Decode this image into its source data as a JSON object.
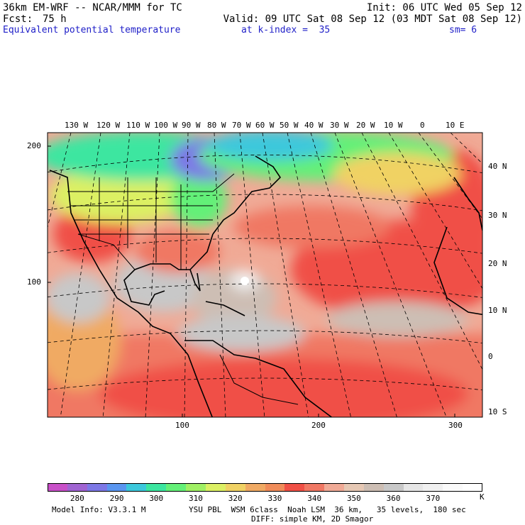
{
  "header": {
    "model_line": "36km EM-WRF -- NCAR/MMM for TC",
    "init": "Init: 06 UTC Wed 05 Sep 12",
    "fcst_label": "Fcst:",
    "fcst_value": "75 h",
    "valid": "Valid: 09 UTC Sat 08 Sep 12 (03 MDT Sat 08 Sep 12)",
    "field_name": "Equivalent potential temperature",
    "level": "at k-index =  35",
    "smoothing": "sm= 6"
  },
  "map": {
    "lon_labels": [
      "130 W",
      "120 W",
      "110 W",
      "100 W",
      "90 W",
      "80 W",
      "70 W",
      "60 W",
      "50 W",
      "40 W",
      "30 W",
      "20 W",
      "10 W",
      "0",
      "10 E"
    ],
    "lat_labels": [
      "40 N",
      "30 N",
      "20 N",
      "10 N",
      "0",
      "10 S"
    ],
    "grid_y_labels": [
      "200",
      "100"
    ],
    "grid_x_labels": [
      "100",
      "200",
      "300"
    ],
    "colors": {
      "background": "#f08c78",
      "land_outline": "#000000"
    }
  },
  "colorbar": {
    "colors": [
      "#c850c8",
      "#a064d2",
      "#7d78e6",
      "#5a96f0",
      "#3cc8dc",
      "#3ce6a0",
      "#64f078",
      "#a0f064",
      "#dcf064",
      "#f0d264",
      "#f0aa64",
      "#f08c5a",
      "#f05046",
      "#f07864",
      "#f0aa96",
      "#e6c8b4",
      "#cdbeb4",
      "#c8c8c8",
      "#e6e6e6",
      "#f0f0f0",
      "#fafafa",
      "#ffffff"
    ],
    "labels": [
      "280",
      "290",
      "300",
      "310",
      "320",
      "330",
      "340",
      "350",
      "360",
      "370"
    ],
    "unit": "K"
  },
  "footer": {
    "model_info": "Model Info: V3.3.1 M",
    "physics": "YSU PBL  WSM 6class  Noah LSM  36 km,   35 levels,  180 sec",
    "diffusion": "DIFF: simple KM, 2D Smagor"
  }
}
